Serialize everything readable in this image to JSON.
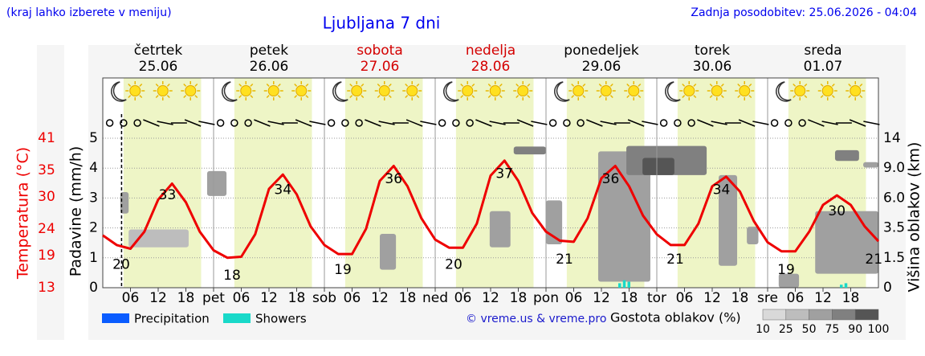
{
  "header": {
    "hint": "(kraj lahko izberete v meniju)",
    "title": "Ljubljana 7 dni",
    "updated": "Zadnja posodobitev: 25.06.2026 - 04:04",
    "credit": "© vreme.us & vreme.pro"
  },
  "chart_data": {
    "type": "line",
    "days": [
      {
        "name": "četrtek",
        "date": "25.06",
        "color": "#000000"
      },
      {
        "name": "petek",
        "date": "26.06",
        "color": "#000000"
      },
      {
        "name": "sobota",
        "date": "27.06",
        "color": "#d40000"
      },
      {
        "name": "nedelja",
        "date": "28.06",
        "color": "#d40000"
      },
      {
        "name": "ponedeljek",
        "date": "29.06",
        "color": "#000000"
      },
      {
        "name": "torek",
        "date": "30.06",
        "color": "#000000"
      },
      {
        "name": "sreda",
        "date": "01.07",
        "color": "#000000"
      }
    ],
    "xlim": [
      0,
      168
    ],
    "xticks": [
      {
        "value": 6,
        "label": "06"
      },
      12,
      18,
      {
        "value": 24,
        "label": "pet"
      },
      {
        "value": 30,
        "label": "06"
      },
      {
        "value": 36,
        "label": "12"
      },
      {
        "value": 42,
        "label": "18"
      },
      {
        "value": 48,
        "label": "sob"
      },
      {
        "value": 54,
        "label": "06"
      },
      {
        "value": 60,
        "label": "12"
      },
      {
        "value": 66,
        "label": "18"
      },
      {
        "value": 72,
        "label": "ned"
      },
      {
        "value": 78,
        "label": "06"
      },
      {
        "value": 84,
        "label": "12"
      },
      {
        "value": 90,
        "label": "18"
      },
      {
        "value": 96,
        "label": "pon"
      },
      {
        "value": 102,
        "label": "06"
      },
      {
        "value": 108,
        "label": "12"
      },
      {
        "value": 114,
        "label": "18"
      },
      {
        "value": 120,
        "label": "tor"
      },
      {
        "value": 126,
        "label": "06"
      },
      {
        "value": 132,
        "label": "12"
      },
      {
        "value": 138,
        "label": "18"
      },
      {
        "value": 144,
        "label": "sre"
      },
      {
        "value": 150,
        "label": "06"
      },
      {
        "value": 156,
        "label": "12"
      },
      {
        "value": 162,
        "label": "18"
      }
    ],
    "now_x": 4.07,
    "ylabel": "Padavine (mm/h)",
    "ylim": [
      0,
      5
    ],
    "yticks": [
      0,
      1,
      2,
      3,
      4,
      5
    ],
    "temp_label": "Temperatura (°C)",
    "temp_ylim": [
      13,
      41
    ],
    "temp_yticks": [
      13,
      19,
      24,
      30,
      35,
      41
    ],
    "y2label": "Višina oblakov (km)",
    "y2lim": [
      0,
      14
    ],
    "y2ticks": [
      0,
      1.5,
      3.5,
      {
        "value": 6,
        "label": "6.0"
      },
      {
        "value": 9,
        "label": "9.0"
      },
      14
    ],
    "grid": true,
    "temperature": {
      "color": "#ee0000",
      "axis": "temp",
      "x": [
        0,
        3,
        6,
        9,
        12,
        15,
        18,
        21,
        24,
        27,
        30,
        33,
        36,
        39,
        42,
        45,
        48,
        51,
        54,
        57,
        60,
        63,
        66,
        69,
        72,
        75,
        78,
        81,
        84,
        87,
        90,
        93,
        96,
        99,
        102,
        105,
        108,
        111,
        114,
        117,
        120,
        123,
        126,
        129,
        132,
        135,
        138,
        141,
        144,
        147,
        150,
        153,
        156,
        159,
        162,
        165,
        168
      ],
      "values": [
        22.8,
        21.0,
        20.3,
        23.5,
        29.5,
        32.5,
        29.0,
        23.5,
        20.0,
        18.6,
        18.8,
        23.0,
        31.5,
        34.2,
        30.5,
        24.5,
        21.0,
        19.3,
        19.3,
        24.0,
        33.0,
        35.8,
        32.0,
        26.0,
        22.0,
        20.5,
        20.5,
        25.0,
        34.0,
        36.8,
        33.0,
        27.0,
        23.5,
        21.8,
        21.6,
        26.0,
        33.5,
        35.8,
        32.0,
        26.5,
        23.0,
        21.0,
        21.0,
        25.0,
        32.0,
        33.8,
        31.0,
        25.5,
        21.5,
        19.8,
        19.8,
        23.5,
        28.5,
        30.3,
        28.5,
        24.5,
        21.7
      ]
    },
    "extremes": {
      "x": [
        4,
        14,
        28,
        39,
        52,
        63,
        76,
        87,
        100,
        110,
        124,
        134,
        148,
        159,
        167
      ],
      "values": [
        20,
        33,
        18,
        34,
        19,
        36,
        20,
        37,
        21,
        36,
        21,
        34,
        19,
        30,
        21
      ]
    },
    "series": [
      {
        "name": "Precipitation",
        "color": "#0a5cff",
        "x": [],
        "values": []
      },
      {
        "name": "Showers",
        "color": "#19d9c9",
        "x": [
          112,
          113,
          114,
          160,
          161
        ],
        "values": [
          0.15,
          0.25,
          0.2,
          0.1,
          0.15
        ]
      }
    ],
    "cloud_label": "Gostota oblakov (%)",
    "cloud_scale": {
      "ticks": [
        10,
        25,
        50,
        75,
        90,
        100
      ],
      "colors": [
        "#d9d9d9",
        "#bdbdbd",
        "#a0a0a0",
        "#808080",
        "#555555"
      ]
    },
    "clouds": [
      {
        "x": [
          3.8,
          5.6
        ],
        "km": [
          4.7,
          6.6
        ],
        "cover": 50
      },
      {
        "x": [
          5.6,
          18.6
        ],
        "km": [
          2.2,
          3.4
        ],
        "cover": 25
      },
      {
        "x": [
          22.6,
          26.8
        ],
        "km": [
          6.2,
          8.7
        ],
        "cover": 50
      },
      {
        "x": [
          60,
          63.5
        ],
        "km": [
          0.9,
          3.1
        ],
        "cover": 50
      },
      {
        "x": [
          83.8,
          88.3
        ],
        "km": [
          2.2,
          4.9
        ],
        "cover": 50
      },
      {
        "x": [
          89,
          96
        ],
        "km": [
          11.3,
          12.6
        ],
        "cover": 75
      },
      {
        "x": [
          96,
          99.5
        ],
        "km": [
          2.4,
          5.8
        ],
        "cover": 50
      },
      {
        "x": [
          107.3,
          118.6
        ],
        "km": [
          0.3,
          11.8
        ],
        "cover": 50
      },
      {
        "x": [
          113.4,
          130.8
        ],
        "km": [
          8.3,
          12.7
        ],
        "cover": 75
      },
      {
        "x": [
          116.9,
          123.8
        ],
        "km": [
          8.3,
          10.7
        ],
        "cover": 90
      },
      {
        "x": [
          133.4,
          137.4
        ],
        "km": [
          1.1,
          8.3
        ],
        "cover": 50
      },
      {
        "x": [
          139.5,
          142
        ],
        "km": [
          2.4,
          3.6
        ],
        "cover": 50
      },
      {
        "x": [
          146.4,
          150.8
        ],
        "km": [
          0,
          0.7
        ],
        "cover": 50
      },
      {
        "x": [
          154.3,
          168
        ],
        "km": [
          0.7,
          4.9
        ],
        "cover": 50
      },
      {
        "x": [
          158.6,
          163.8
        ],
        "km": [
          10.2,
          12
        ],
        "cover": 75
      },
      {
        "x": [
          164.7,
          168
        ],
        "km": [
          9.1,
          10
        ],
        "cover": 50
      }
    ]
  }
}
